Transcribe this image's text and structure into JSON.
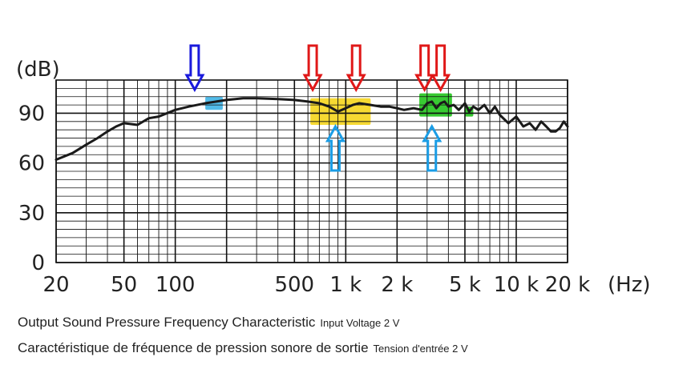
{
  "chart_data": {
    "type": "line",
    "ylabel": "(dB)",
    "xlabel": "(Hz)",
    "xscale": "log",
    "xlim": [
      20,
      20000
    ],
    "ylim": [
      0,
      110
    ],
    "x_tick_labels": [
      {
        "value": 20,
        "label": "20"
      },
      {
        "value": 50,
        "label": "50"
      },
      {
        "value": 100,
        "label": "100"
      },
      {
        "value": 500,
        "label": "500"
      },
      {
        "value": 1000,
        "label": "1 k"
      },
      {
        "value": 2000,
        "label": "2 k"
      },
      {
        "value": 5000,
        "label": "5 k"
      },
      {
        "value": 10000,
        "label": "10 k"
      },
      {
        "value": 20000,
        "label": "20 k"
      }
    ],
    "y_tick_labels": [
      {
        "value": 0,
        "label": "0"
      },
      {
        "value": 30,
        "label": "30"
      },
      {
        "value": 60,
        "label": "60"
      },
      {
        "value": 90,
        "label": "90"
      }
    ],
    "grid": true,
    "series": [
      {
        "color": "#1a1a1a",
        "points": [
          [
            20,
            62
          ],
          [
            25,
            66
          ],
          [
            30,
            71
          ],
          [
            35,
            75
          ],
          [
            40,
            79
          ],
          [
            45,
            82
          ],
          [
            50,
            84
          ],
          [
            60,
            83
          ],
          [
            70,
            87
          ],
          [
            80,
            88
          ],
          [
            100,
            92
          ],
          [
            120,
            94
          ],
          [
            150,
            96
          ],
          [
            200,
            98
          ],
          [
            250,
            99
          ],
          [
            300,
            99
          ],
          [
            400,
            98.5
          ],
          [
            500,
            98
          ],
          [
            600,
            97
          ],
          [
            700,
            96
          ],
          [
            800,
            94
          ],
          [
            900,
            91
          ],
          [
            1000,
            93
          ],
          [
            1100,
            95
          ],
          [
            1200,
            96
          ],
          [
            1400,
            95
          ],
          [
            1600,
            94
          ],
          [
            1800,
            94
          ],
          [
            2000,
            93
          ],
          [
            2200,
            92
          ],
          [
            2500,
            93
          ],
          [
            2800,
            92
          ],
          [
            3000,
            96
          ],
          [
            3200,
            97
          ],
          [
            3400,
            93
          ],
          [
            3600,
            96
          ],
          [
            3800,
            97
          ],
          [
            4000,
            94
          ],
          [
            4300,
            95
          ],
          [
            4600,
            92
          ],
          [
            5000,
            96
          ],
          [
            5300,
            91
          ],
          [
            5600,
            94
          ],
          [
            6000,
            92
          ],
          [
            6500,
            95
          ],
          [
            7000,
            90
          ],
          [
            7500,
            94
          ],
          [
            8000,
            89
          ],
          [
            9000,
            84
          ],
          [
            10000,
            88
          ],
          [
            11000,
            82
          ],
          [
            12000,
            84
          ],
          [
            13000,
            80
          ],
          [
            14000,
            85
          ],
          [
            15000,
            82
          ],
          [
            16000,
            79
          ],
          [
            17000,
            79
          ],
          [
            18000,
            81
          ],
          [
            19000,
            85
          ],
          [
            20000,
            82
          ]
        ]
      }
    ],
    "highlights": [
      {
        "x_range": [
          150,
          190
        ],
        "y_range": [
          92,
          100
        ],
        "color": "#3fb4e6"
      },
      {
        "x_range": [
          620,
          1400
        ],
        "y_range": [
          83,
          99
        ],
        "color": "#f5d51c"
      },
      {
        "x_range": [
          2700,
          4200
        ],
        "y_range": [
          88,
          102
        ],
        "color": "#22c41c"
      },
      {
        "x_range": [
          5000,
          5600
        ],
        "y_range": [
          88,
          94
        ],
        "color": "#22c41c"
      }
    ],
    "arrows": [
      {
        "x": 130,
        "direction": "down",
        "color": "#1a1adc"
      },
      {
        "x": 640,
        "direction": "down",
        "color": "#e01818"
      },
      {
        "x": 1150,
        "direction": "down",
        "color": "#e01818"
      },
      {
        "x": 2900,
        "direction": "down",
        "color": "#e01818"
      },
      {
        "x": 3600,
        "direction": "down",
        "color": "#e01818"
      },
      {
        "x": 870,
        "direction": "up",
        "color": "#1a9de6"
      },
      {
        "x": 3200,
        "direction": "up",
        "color": "#1a9de6"
      }
    ]
  },
  "captions": {
    "line1_main": "Output Sound Pressure Frequency Characteristic",
    "line1_note": "Input Voltage 2 V",
    "line2_main": "Caractéristique de fréquence de pression sonore de sortie",
    "line2_note": "Tension d'entrée 2 V"
  }
}
